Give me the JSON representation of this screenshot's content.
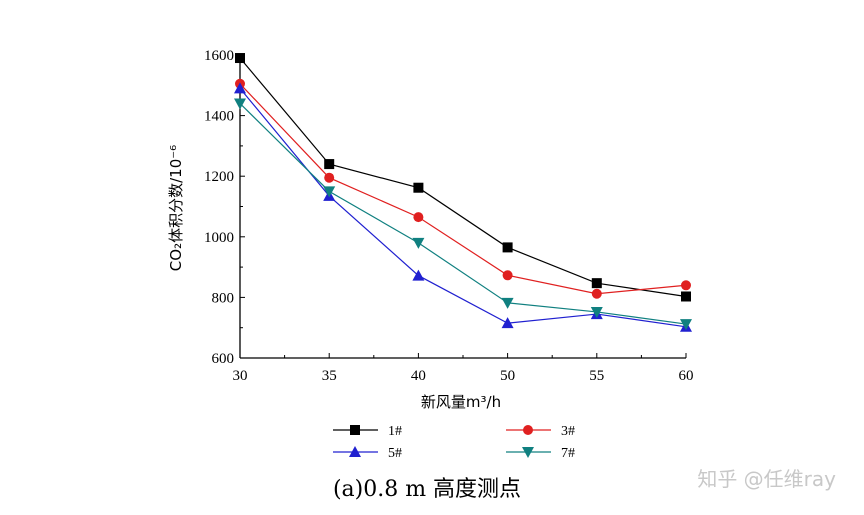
{
  "chart_data": {
    "type": "line",
    "title": "(a)0.8 m 高度测点",
    "xlabel": "新风量m³/h",
    "ylabel": "CO₂体积分数/10⁻⁶",
    "x": [
      30,
      35,
      40,
      50,
      55,
      60
    ],
    "x_tick_labels": [
      "30",
      "35",
      "40",
      "50",
      "55",
      "60"
    ],
    "ylim": [
      600,
      1600
    ],
    "y_ticks": [
      600,
      800,
      1000,
      1200,
      1400,
      1600
    ],
    "y_tick_labels": [
      "600",
      "800",
      "1000",
      "1200",
      "1400",
      "1600"
    ],
    "grid": false,
    "legend_position": "bottom",
    "series": [
      {
        "name": "1#",
        "color": "#000000",
        "marker": "square",
        "values": [
          1590,
          1240,
          1162,
          965,
          847,
          803
        ]
      },
      {
        "name": "3#",
        "color": "#e02020",
        "marker": "circle",
        "values": [
          1505,
          1195,
          1065,
          873,
          812,
          840
        ]
      },
      {
        "name": "5#",
        "color": "#2020d0",
        "marker": "triangle-up",
        "values": [
          1490,
          1135,
          872,
          715,
          745,
          703
        ]
      },
      {
        "name": "7#",
        "color": "#108080",
        "marker": "triangle-down",
        "values": [
          1440,
          1150,
          980,
          782,
          752,
          712
        ]
      }
    ]
  },
  "watermark": "知乎 @任维ray"
}
